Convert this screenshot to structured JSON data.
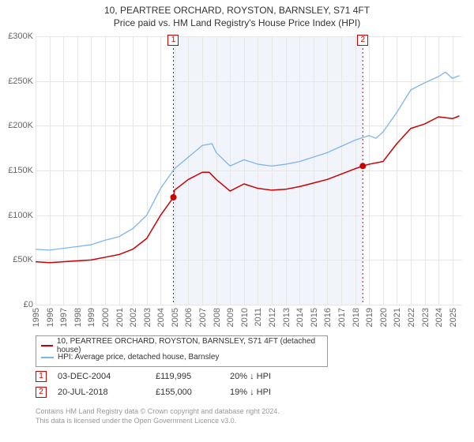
{
  "title": "10, PEARTREE ORCHARD, ROYSTON, BARNSLEY, S71 4FT",
  "subtitle": "Price paid vs. HM Land Registry's House Price Index (HPI)",
  "chart": {
    "type": "line",
    "background_color": "#ffffff",
    "grid_color": "#e6e6e6",
    "plot_band_color": "#e6ebf5",
    "plot_band_start": 2004.92,
    "plot_band_end": 2018.55,
    "xlim": [
      1995,
      2025.7
    ],
    "ylim": [
      0,
      300000
    ],
    "ytick_step": 50000,
    "yticks": [
      "£0",
      "£50K",
      "£100K",
      "£150K",
      "£200K",
      "£250K",
      "£300K"
    ],
    "xticks": [
      "1995",
      "1996",
      "1997",
      "1998",
      "1999",
      "2000",
      "2001",
      "2002",
      "2003",
      "2004",
      "2005",
      "2006",
      "2007",
      "2008",
      "2009",
      "2010",
      "2011",
      "2012",
      "2013",
      "2014",
      "2015",
      "2016",
      "2017",
      "2018",
      "2019",
      "2020",
      "2021",
      "2022",
      "2023",
      "2024",
      "2025"
    ],
    "axis_label_color": "#666666",
    "axis_label_fontsize": 11,
    "series": [
      {
        "name": "price_paid",
        "label": "10, PEARTREE ORCHARD, ROYSTON, BARNSLEY, S71 4FT (detached house)",
        "color": "#cc0000",
        "line_width": 1.5,
        "data": [
          [
            1995,
            48000
          ],
          [
            1996,
            47000
          ],
          [
            1997,
            48000
          ],
          [
            1998,
            49000
          ],
          [
            1999,
            50000
          ],
          [
            2000,
            53000
          ],
          [
            2001,
            56000
          ],
          [
            2002,
            62000
          ],
          [
            2003,
            74000
          ],
          [
            2004,
            100000
          ],
          [
            2004.92,
            119995
          ],
          [
            2005,
            128000
          ],
          [
            2006,
            140000
          ],
          [
            2007,
            148000
          ],
          [
            2007.5,
            148000
          ],
          [
            2008,
            140000
          ],
          [
            2009,
            127000
          ],
          [
            2010,
            135000
          ],
          [
            2011,
            130000
          ],
          [
            2012,
            128000
          ],
          [
            2013,
            129000
          ],
          [
            2014,
            132000
          ],
          [
            2015,
            136000
          ],
          [
            2016,
            140000
          ],
          [
            2017,
            146000
          ],
          [
            2018,
            152000
          ],
          [
            2018.55,
            155000
          ],
          [
            2019,
            157000
          ],
          [
            2020,
            160000
          ],
          [
            2021,
            180000
          ],
          [
            2022,
            197000
          ],
          [
            2023,
            202000
          ],
          [
            2024,
            210000
          ],
          [
            2025,
            208000
          ],
          [
            2025.5,
            211000
          ]
        ]
      },
      {
        "name": "hpi",
        "label": "HPI: Average price, detached house, Barnsley",
        "color": "#7cb5ec",
        "line_width": 1.3,
        "data": [
          [
            1995,
            62000
          ],
          [
            1996,
            61000
          ],
          [
            1997,
            63000
          ],
          [
            1998,
            65000
          ],
          [
            1999,
            67000
          ],
          [
            2000,
            72000
          ],
          [
            2001,
            76000
          ],
          [
            2002,
            85000
          ],
          [
            2003,
            100000
          ],
          [
            2004,
            130000
          ],
          [
            2005,
            152000
          ],
          [
            2006,
            165000
          ],
          [
            2007,
            178000
          ],
          [
            2007.7,
            180000
          ],
          [
            2008,
            170000
          ],
          [
            2009,
            155000
          ],
          [
            2010,
            162000
          ],
          [
            2011,
            157000
          ],
          [
            2012,
            155000
          ],
          [
            2013,
            157000
          ],
          [
            2014,
            160000
          ],
          [
            2015,
            165000
          ],
          [
            2016,
            170000
          ],
          [
            2017,
            177000
          ],
          [
            2018,
            184000
          ],
          [
            2019,
            189000
          ],
          [
            2019.5,
            186000
          ],
          [
            2020,
            193000
          ],
          [
            2021,
            215000
          ],
          [
            2022,
            240000
          ],
          [
            2023,
            248000
          ],
          [
            2024,
            255000
          ],
          [
            2024.5,
            260000
          ],
          [
            2025,
            253000
          ],
          [
            2025.5,
            256000
          ]
        ]
      }
    ],
    "markers": [
      {
        "n": "1",
        "x": 2004.92,
        "y": 119995,
        "color": "#cc0000"
      },
      {
        "n": "2",
        "x": 2018.55,
        "y": 155000,
        "color": "#cc0000"
      }
    ]
  },
  "legend": {
    "border_color": "#999999",
    "items": [
      {
        "color": "#cc0000",
        "label": "10, PEARTREE ORCHARD, ROYSTON, BARNSLEY, S71 4FT (detached house)"
      },
      {
        "color": "#7cb5ec",
        "label": "HPI: Average price, detached house, Barnsley"
      }
    ]
  },
  "transactions": [
    {
      "n": "1",
      "date": "03-DEC-2004",
      "price": "£119,995",
      "delta": "20% ↓ HPI"
    },
    {
      "n": "2",
      "date": "20-JUL-2018",
      "price": "£155,000",
      "delta": "19% ↓ HPI"
    }
  ],
  "credits": {
    "line1": "Contains HM Land Registry data © Crown copyright and database right 2024.",
    "line2": "This data is licensed under the Open Government Licence v3.0."
  }
}
